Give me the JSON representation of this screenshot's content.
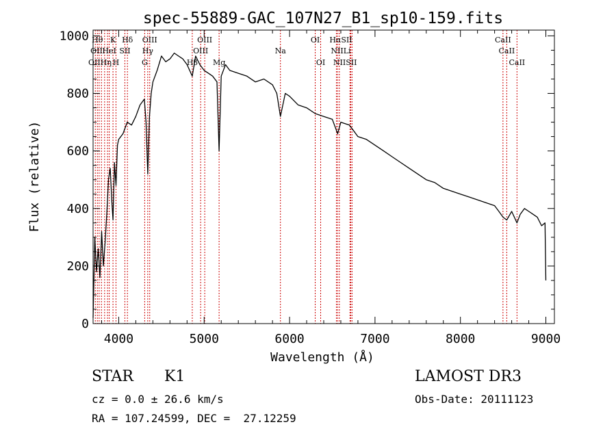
{
  "chart_data": {
    "type": "line",
    "title": "spec-55889-GAC_107N27_B1_sp10-159.fits",
    "xlabel": "Wavelength (Å)",
    "ylabel": "Flux (relative)",
    "xlim": [
      3700,
      9100
    ],
    "ylim": [
      0,
      1020
    ],
    "xticks": [
      4000,
      5000,
      6000,
      7000,
      8000,
      9000
    ],
    "yticks": [
      0,
      200,
      400,
      600,
      800,
      1000
    ],
    "grid": false,
    "series": [
      {
        "color": "#000000",
        "x": [
          3700,
          3720,
          3740,
          3760,
          3780,
          3800,
          3820,
          3840,
          3860,
          3880,
          3900,
          3920,
          3933,
          3950,
          3968,
          3985,
          4000,
          4050,
          4100,
          4150,
          4200,
          4250,
          4300,
          4320,
          4340,
          4360,
          4380,
          4400,
          4450,
          4500,
          4550,
          4600,
          4650,
          4700,
          4750,
          4800,
          4861,
          4900,
          4950,
          5000,
          5050,
          5100,
          5150,
          5175,
          5200,
          5250,
          5300,
          5400,
          5500,
          5600,
          5700,
          5800,
          5850,
          5893,
          5950,
          6000,
          6100,
          6200,
          6300,
          6400,
          6500,
          6563,
          6600,
          6650,
          6700,
          6750,
          6800,
          6900,
          7000,
          7100,
          7200,
          7300,
          7400,
          7500,
          7600,
          7700,
          7800,
          7900,
          8000,
          8100,
          8200,
          8300,
          8400,
          8450,
          8498,
          8542,
          8600,
          8662,
          8700,
          8750,
          8800,
          8850,
          8900,
          8950,
          8990,
          9000
        ],
        "y": [
          20,
          300,
          180,
          260,
          160,
          320,
          200,
          280,
          380,
          500,
          540,
          420,
          360,
          560,
          480,
          620,
          640,
          660,
          700,
          690,
          720,
          760,
          780,
          700,
          520,
          720,
          800,
          840,
          880,
          930,
          910,
          920,
          940,
          930,
          920,
          900,
          860,
          930,
          900,
          880,
          870,
          860,
          840,
          600,
          860,
          900,
          880,
          870,
          860,
          840,
          850,
          830,
          800,
          720,
          800,
          790,
          760,
          750,
          730,
          720,
          710,
          660,
          700,
          695,
          690,
          670,
          650,
          640,
          620,
          600,
          580,
          560,
          540,
          520,
          500,
          490,
          470,
          460,
          450,
          440,
          430,
          420,
          410,
          390,
          370,
          360,
          390,
          350,
          380,
          400,
          390,
          380,
          370,
          340,
          350,
          150
        ]
      }
    ],
    "lines": [
      {
        "wl": 3726,
        "label": "OII"
      },
      {
        "wl": 3750,
        "label": "Hθ"
      },
      {
        "wl": 3771,
        "label": "Hη"
      },
      {
        "wl": 3798,
        "label": "Hζ"
      },
      {
        "wl": 3835,
        "label": "Hη"
      },
      {
        "wl": 3869,
        "label": "NeIII"
      },
      {
        "wl": 3889,
        "label": "HeI"
      },
      {
        "wl": 3933,
        "label": "K"
      },
      {
        "wl": 3968,
        "label": "H"
      },
      {
        "wl": 4072,
        "label": "SII"
      },
      {
        "wl": 4102,
        "label": "Hδ"
      },
      {
        "wl": 4304,
        "label": "G"
      },
      {
        "wl": 4340,
        "label": "Hγ"
      },
      {
        "wl": 4363,
        "label": "OIII"
      },
      {
        "wl": 4861,
        "label": "Hβ"
      },
      {
        "wl": 4959,
        "label": "OIII"
      },
      {
        "wl": 5007,
        "label": "OIII"
      },
      {
        "wl": 5175,
        "label": "Mg"
      },
      {
        "wl": 5893,
        "label": "Na"
      },
      {
        "wl": 6300,
        "label": "OI"
      },
      {
        "wl": 6364,
        "label": "OI"
      },
      {
        "wl": 6548,
        "label": "NII"
      },
      {
        "wl": 6563,
        "label": "Hα"
      },
      {
        "wl": 6583,
        "label": "NII"
      },
      {
        "wl": 6707,
        "label": "Li"
      },
      {
        "wl": 6716,
        "label": "SII"
      },
      {
        "wl": 6731,
        "label": "SII"
      },
      {
        "wl": 8498,
        "label": "CaII"
      },
      {
        "wl": 8542,
        "label": "CaII"
      },
      {
        "wl": 8662,
        "label": "CaII"
      }
    ],
    "line_labels": [
      {
        "text": "Hθ",
        "wl": 3750,
        "row": 0
      },
      {
        "text": "K",
        "wl": 3933,
        "row": 0
      },
      {
        "text": "Hδ",
        "wl": 4102,
        "row": 0
      },
      {
        "text": "OIII",
        "wl": 4363,
        "row": 0
      },
      {
        "text": "OIII",
        "wl": 5007,
        "row": 0
      },
      {
        "text": "OI",
        "wl": 6300,
        "row": 0
      },
      {
        "text": "HαSII",
        "wl": 6600,
        "row": 0
      },
      {
        "text": "CaII",
        "wl": 8498,
        "row": 0
      },
      {
        "text": "OII",
        "wl": 3740,
        "row": 1
      },
      {
        "text": "HeI",
        "wl": 3889,
        "row": 1
      },
      {
        "text": "SII",
        "wl": 4072,
        "row": 1
      },
      {
        "text": "Hγ",
        "wl": 4340,
        "row": 1
      },
      {
        "text": "OIII",
        "wl": 4959,
        "row": 1
      },
      {
        "text": "Na",
        "wl": 5893,
        "row": 1
      },
      {
        "text": "NIILi",
        "wl": 6600,
        "row": 1
      },
      {
        "text": "CaII",
        "wl": 8542,
        "row": 1
      },
      {
        "text": "OIIHη",
        "wl": 3780,
        "row": 2
      },
      {
        "text": "H",
        "wl": 3968,
        "row": 2
      },
      {
        "text": "G",
        "wl": 4304,
        "row": 2
      },
      {
        "text": "Hβ",
        "wl": 4861,
        "row": 2
      },
      {
        "text": "Mg",
        "wl": 5175,
        "row": 2
      },
      {
        "text": "OI",
        "wl": 6364,
        "row": 2
      },
      {
        "text": "NIISII",
        "wl": 6650,
        "row": 2
      },
      {
        "text": "CaII",
        "wl": 8662,
        "row": 2
      }
    ]
  },
  "footer": {
    "class": "STAR",
    "subclass": "K1",
    "cz": "cz = 0.0 ± 26.6 km/s",
    "radec": "RA = 107.24599, DEC =  27.12259",
    "survey": "LAMOST DR3",
    "obs_date": "Obs-Date: 20111123"
  },
  "colors": {
    "spectrum": "#000000",
    "line_markers": "#cc0000",
    "axes": "#000000",
    "background": "#ffffff"
  }
}
